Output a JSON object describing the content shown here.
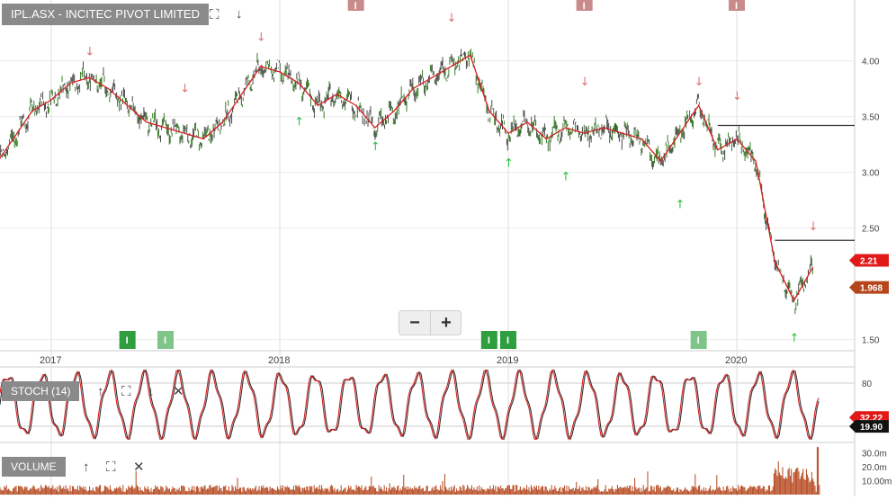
{
  "chart_data": [
    {
      "type": "line",
      "title": "IPL.ASX - INCITEC PIVOT LIMITED",
      "x_ticks": [
        "2017",
        "2018",
        "2019",
        "2020"
      ],
      "y_ticks": [
        "4.00",
        "3.50",
        "3.00",
        "2.50",
        "1.50"
      ],
      "ylim": [
        1.4,
        4.4
      ],
      "x_range": [
        "2016-09",
        "2020-05"
      ],
      "grid": true,
      "series": [
        {
          "color": "#d62020",
          "points": [
            [
              "2016-09",
              2.85
            ],
            [
              "2016-10",
              3.05
            ],
            [
              "2016-11",
              3.3
            ],
            [
              "2016-12",
              3.55
            ],
            [
              "2017-01",
              3.65
            ],
            [
              "2017-02",
              3.8
            ],
            [
              "2017-03",
              3.85
            ],
            [
              "2017-04",
              3.75
            ],
            [
              "2017-05",
              3.6
            ],
            [
              "2017-06",
              3.45
            ],
            [
              "2017-07",
              3.4
            ],
            [
              "2017-08",
              3.35
            ],
            [
              "2017-09",
              3.3
            ],
            [
              "2017-10",
              3.45
            ],
            [
              "2017-11",
              3.7
            ],
            [
              "2017-12",
              3.95
            ],
            [
              "2018-01",
              3.9
            ],
            [
              "2018-02",
              3.8
            ],
            [
              "2018-03",
              3.6
            ],
            [
              "2018-04",
              3.7
            ],
            [
              "2018-05",
              3.6
            ],
            [
              "2018-06",
              3.4
            ],
            [
              "2018-07",
              3.55
            ],
            [
              "2018-08",
              3.75
            ],
            [
              "2018-09",
              3.85
            ],
            [
              "2018-10",
              3.95
            ],
            [
              "2018-11",
              4.05
            ],
            [
              "2018-12",
              3.55
            ],
            [
              "2019-01",
              3.35
            ],
            [
              "2019-02",
              3.45
            ],
            [
              "2019-03",
              3.3
            ],
            [
              "2019-04",
              3.4
            ],
            [
              "2019-05",
              3.35
            ],
            [
              "2019-06",
              3.4
            ],
            [
              "2019-07",
              3.35
            ],
            [
              "2019-08",
              3.3
            ],
            [
              "2019-09",
              3.1
            ],
            [
              "2019-10",
              3.35
            ],
            [
              "2019-11",
              3.6
            ],
            [
              "2019-12",
              3.2
            ],
            [
              "2020-01",
              3.3
            ],
            [
              "2020-02",
              3.1
            ],
            [
              "2020-03",
              2.2
            ],
            [
              "2020-04",
              1.85
            ],
            [
              "2020-05",
              2.15
            ]
          ]
        }
      ],
      "annotations": [
        {
          "text": "I",
          "color": "#2e9e3e",
          "at": "2017-05"
        },
        {
          "text": "I",
          "color": "#7fc58a",
          "at": "2017-07"
        },
        {
          "text": "I",
          "color": "#2e9e3e",
          "at": "2018-12"
        },
        {
          "text": "I",
          "color": "#2e9e3e",
          "at": "2019-01"
        },
        {
          "text": "I",
          "color": "#7fc58a",
          "at": "2019-11"
        },
        {
          "text": "I",
          "color": "#c98a8a",
          "at": "2018-05"
        },
        {
          "text": "I",
          "color": "#c98a8a",
          "at": "2019-05"
        },
        {
          "text": "I",
          "color": "#c98a8a",
          "at": "2020-01"
        }
      ],
      "signals_down": [
        [
          "2017-03",
          4.05
        ],
        [
          "2017-08",
          3.72
        ],
        [
          "2017-12",
          4.18
        ],
        [
          "2018-10",
          4.35
        ],
        [
          "2019-05",
          3.78
        ],
        [
          "2019-11",
          3.78
        ],
        [
          "2020-01",
          3.65
        ],
        [
          "2020-05",
          2.48
        ]
      ],
      "signals_up": [
        [
          "2018-02",
          3.42
        ],
        [
          "2018-06",
          3.2
        ],
        [
          "2019-01",
          3.05
        ],
        [
          "2019-04",
          2.93
        ],
        [
          "2019-10",
          2.68
        ],
        [
          "2020-04",
          1.48
        ]
      ],
      "levels": [
        {
          "value": 3.42,
          "from": "2019-12"
        },
        {
          "value": 2.39,
          "from": "2020-03"
        }
      ],
      "price_labels": [
        {
          "text": "2.21",
          "value": 2.21,
          "color": "#e11919"
        },
        {
          "text": "1.968",
          "value": 1.968,
          "color": "#b5451b"
        }
      ]
    },
    {
      "type": "line",
      "title": "STOCH (14)",
      "y_ticks": [
        "80"
      ],
      "ylim": [
        0,
        100
      ],
      "grid": true,
      "series": [
        {
          "color": "#333333",
          "cycles": 24
        },
        {
          "color": "#d62020",
          "cycles": 24
        }
      ],
      "price_labels": [
        {
          "text": "32.22",
          "value": 32.22,
          "color": "#e11919"
        },
        {
          "text": "19.90",
          "value": 19.9,
          "color": "#111111"
        }
      ]
    },
    {
      "type": "bar",
      "title": "VOLUME",
      "y_ticks": [
        "30.0m",
        "20.0m",
        "10.00m"
      ],
      "ylim": [
        0,
        36
      ],
      "bar_color": "#b4451b"
    }
  ],
  "toolbar": {
    "tools_main": [
      "expand-icon",
      "arrow-down-icon"
    ],
    "tools_stoch": [
      "arrow-up-icon",
      "expand-icon",
      "arrow-down-icon",
      "close-icon"
    ],
    "tools_volume": [
      "arrow-up-icon",
      "expand-icon",
      "close-icon"
    ],
    "zoom_out": "−",
    "zoom_in": "+"
  }
}
